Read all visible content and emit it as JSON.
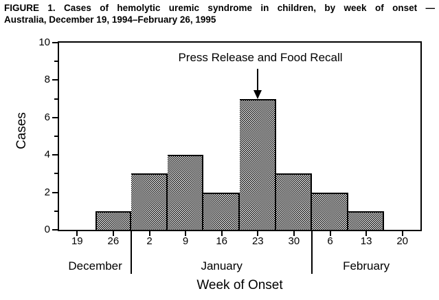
{
  "figure_title": {
    "line1": "FIGURE 1. Cases of hemolytic uremic syndrome in children, by week of onset —",
    "line2": "Australia, December 19, 1994–February 26, 1995"
  },
  "chart_data": {
    "type": "bar",
    "title": "FIGURE 1. Cases of hemolytic uremic syndrome in children, by week of onset — Australia, December 19, 1994–February 26, 1995",
    "xlabel": "Week of Onset",
    "ylabel": "Cases",
    "categories": [
      "19",
      "26",
      "2",
      "9",
      "16",
      "23",
      "30",
      "6",
      "13",
      "20"
    ],
    "values": [
      0,
      1,
      3,
      4,
      2,
      7,
      3,
      2,
      1,
      0
    ],
    "ylim": [
      0,
      10
    ],
    "y_major_ticks": [
      0,
      2,
      4,
      6,
      8,
      10
    ],
    "y_minor_ticks": [
      1,
      3,
      5,
      7,
      9
    ],
    "months": [
      {
        "label": "December",
        "start_col": 0,
        "end_col": 1
      },
      {
        "label": "January",
        "start_col": 2,
        "end_col": 6
      },
      {
        "label": "February",
        "start_col": 7,
        "end_col": 9
      }
    ],
    "annotation": {
      "text": "Press Release and Food Recall",
      "points_to_category": "23",
      "points_to_col": 5
    },
    "bar_fill": "stippled-halftone",
    "bar_border_color": "#000000",
    "frame": true,
    "grid": false,
    "legend": "none"
  }
}
